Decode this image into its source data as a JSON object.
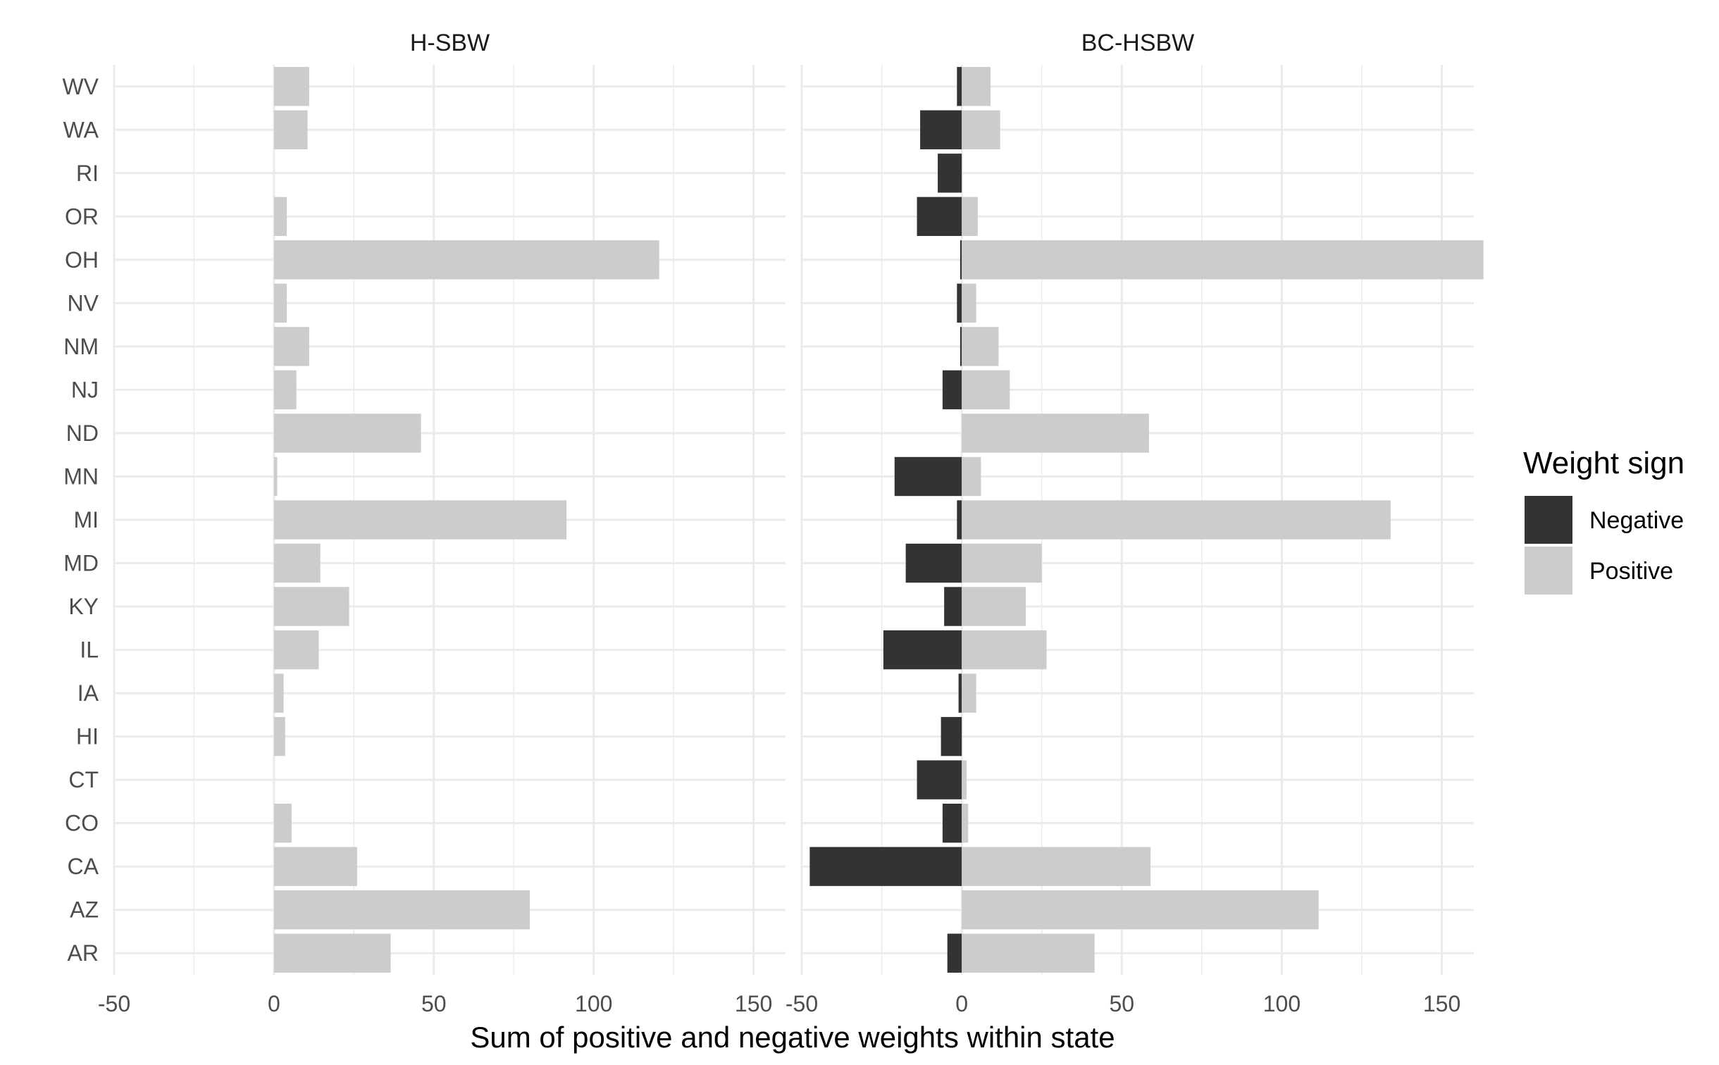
{
  "chart_data": {
    "type": "bar",
    "orientation": "horizontal",
    "stacked": "diverging",
    "xlabel": "Sum of positive and negative weights within state",
    "ylabel": "",
    "xlim": [
      -50,
      160
    ],
    "x_ticks": [
      -50,
      0,
      50,
      100,
      150
    ],
    "grid": true,
    "legend": {
      "title": "Weight sign",
      "position": "right",
      "entries": [
        {
          "label": "Negative",
          "color": "#333333"
        },
        {
          "label": "Positive",
          "color": "#cccccc"
        }
      ]
    },
    "categories": [
      "AR",
      "AZ",
      "CA",
      "CO",
      "CT",
      "HI",
      "IA",
      "IL",
      "KY",
      "MD",
      "MI",
      "MN",
      "ND",
      "NJ",
      "NM",
      "NV",
      "OH",
      "OR",
      "RI",
      "WA",
      "WV"
    ],
    "panels": [
      {
        "title": "H-SBW",
        "series": [
          {
            "name": "Negative",
            "values": [
              0,
              0,
              0,
              0,
              0,
              0,
              0,
              0,
              0,
              0,
              0,
              0,
              0,
              0,
              0,
              0,
              0,
              0,
              0,
              0,
              0
            ]
          },
          {
            "name": "Positive",
            "values": [
              36.5,
              80,
              26,
              5.5,
              0,
              3.5,
              3,
              14,
              23.5,
              14.5,
              91.5,
              1,
              46,
              7,
              11,
              4,
              120.5,
              4,
              0,
              10.5,
              11
            ]
          }
        ]
      },
      {
        "title": "BC-HSBW",
        "series": [
          {
            "name": "Negative",
            "values": [
              -4.5,
              0,
              -47.5,
              -6,
              -14,
              -6.5,
              -1,
              -24.5,
              -5.5,
              -17.5,
              -1.5,
              -21,
              0,
              -6,
              -0.5,
              -1.5,
              -0.5,
              -14,
              -7.5,
              -13,
              -1.5
            ]
          },
          {
            "name": "Positive",
            "values": [
              41.5,
              111.5,
              59,
              2,
              1.5,
              0,
              4.5,
              26.5,
              20,
              25,
              134,
              6,
              58.5,
              15,
              11.5,
              4.5,
              163,
              5,
              0,
              12,
              9
            ]
          }
        ]
      }
    ]
  }
}
